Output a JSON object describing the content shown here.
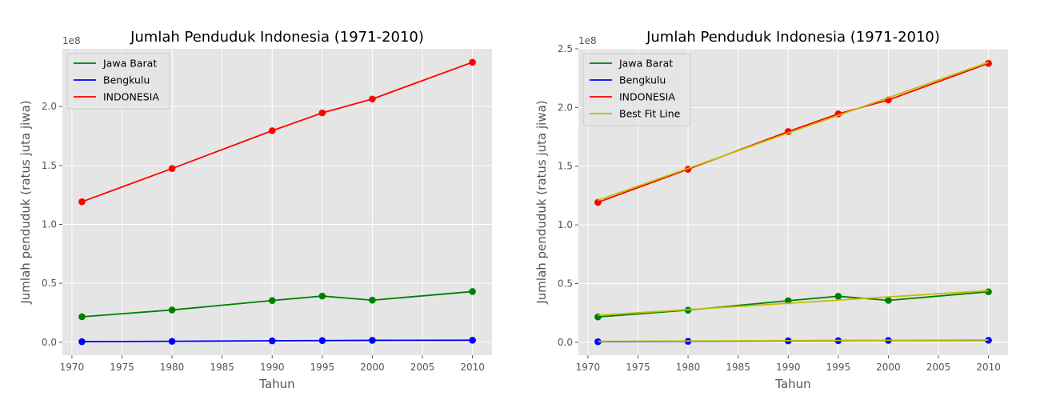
{
  "chart_data": [
    {
      "type": "line",
      "title": "Jumlah Penduduk Indonesia (1971-2010)",
      "xlabel": "Tahun",
      "ylabel": "Jumlah penduduk (ratus juta jiwa)",
      "y_offset_label": "1e8",
      "x": [
        1971,
        1980,
        1990,
        1995,
        2000,
        2010
      ],
      "xlim": [
        1969.05,
        2011.95
      ],
      "ylim": [
        -0.11,
        2.49
      ],
      "xticks": [
        1970,
        1975,
        1980,
        1985,
        1990,
        1995,
        2000,
        2005,
        2010
      ],
      "xtick_labels": [
        "1970",
        "1975",
        "1980",
        "1985",
        "1990",
        "1995",
        "2000",
        "2005",
        "2010"
      ],
      "yticks": [
        0.0,
        0.5,
        1.0,
        1.5,
        2.0
      ],
      "ytick_labels": [
        "0.0",
        "0.5",
        "1.0",
        "1.5",
        "2.0"
      ],
      "grid": true,
      "legend_position": "top-left",
      "series": [
        {
          "name": "Jawa Barat",
          "color": "#008000",
          "values": [
            0.216,
            0.274,
            0.354,
            0.392,
            0.357,
            0.43
          ]
        },
        {
          "name": "Bengkulu",
          "color": "#0000ff",
          "values": [
            0.005,
            0.008,
            0.012,
            0.014,
            0.016,
            0.017
          ]
        },
        {
          "name": "INDONESIA",
          "color": "#ff0000",
          "values": [
            1.192,
            1.474,
            1.795,
            1.946,
            2.064,
            2.376
          ]
        }
      ]
    },
    {
      "type": "line",
      "title": "Jumlah Penduduk Indonesia (1971-2010)",
      "xlabel": "Tahun",
      "ylabel": "Jumlah penduduk (ratus juta jiwa)",
      "y_offset_label": "1e8",
      "x": [
        1971,
        1980,
        1990,
        1995,
        2000,
        2010
      ],
      "xlim": [
        1969.05,
        2011.95
      ],
      "ylim": [
        -0.11,
        2.5
      ],
      "xticks": [
        1970,
        1975,
        1980,
        1985,
        1990,
        1995,
        2000,
        2005,
        2010
      ],
      "xtick_labels": [
        "1970",
        "1975",
        "1980",
        "1985",
        "1990",
        "1995",
        "2000",
        "2005",
        "2010"
      ],
      "yticks": [
        0.0,
        0.5,
        1.0,
        1.5,
        2.0,
        2.5
      ],
      "ytick_labels": [
        "0.0",
        "0.5",
        "1.0",
        "1.5",
        "2.0",
        "2.5"
      ],
      "grid": true,
      "legend_position": "top-left",
      "series": [
        {
          "name": "Jawa Barat",
          "color": "#008000",
          "values": [
            0.216,
            0.274,
            0.354,
            0.392,
            0.357,
            0.43
          ]
        },
        {
          "name": "Bengkulu",
          "color": "#0000ff",
          "values": [
            0.005,
            0.008,
            0.012,
            0.014,
            0.016,
            0.017
          ]
        },
        {
          "name": "INDONESIA",
          "color": "#ff0000",
          "values": [
            1.192,
            1.474,
            1.795,
            1.946,
            2.064,
            2.376
          ]
        }
      ],
      "best_fit": {
        "name": "Best Fit Line",
        "color": "#bfbf00",
        "lines": [
          {
            "x": [
              1971,
              2010
            ],
            "values": [
              1.21,
              2.385
            ]
          },
          {
            "x": [
              1971,
              2010
            ],
            "values": [
              0.23,
              0.44
            ]
          },
          {
            "x": [
              1971,
              2010
            ],
            "values": [
              0.008,
              0.02
            ]
          }
        ]
      }
    }
  ]
}
